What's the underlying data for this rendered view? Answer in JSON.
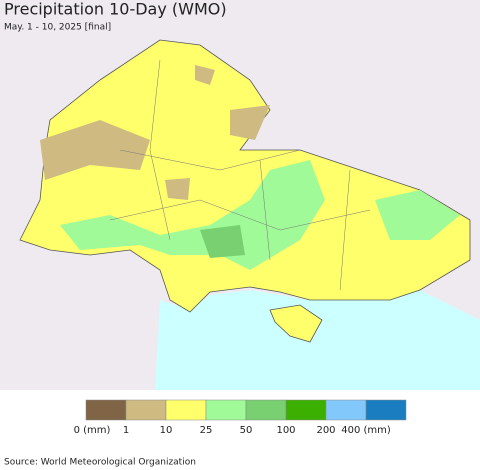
{
  "header": {
    "title": "Precipitation 10-Day (WMO)",
    "subtitle": "May. 1 - 10, 2025 [final]"
  },
  "legend": {
    "items": [
      {
        "label": "0 (mm)",
        "color": "#7f6446"
      },
      {
        "label": "1",
        "color": "#cfbb82"
      },
      {
        "label": "10",
        "color": "#ffff6b"
      },
      {
        "label": "25",
        "color": "#a0fa98"
      },
      {
        "label": "50",
        "color": "#78d070"
      },
      {
        "label": "100",
        "color": "#3bb000"
      },
      {
        "label": "200",
        "color": "#82c8fa"
      },
      {
        "label": "400 (mm)",
        "color": "#1a7dc0"
      }
    ]
  },
  "footer": {
    "source": "Source: World Meteorological Organization"
  }
}
